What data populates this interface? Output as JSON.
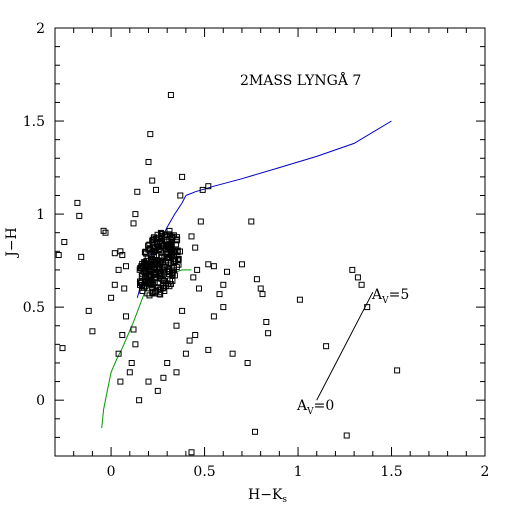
{
  "chart_data": {
    "type": "scatter",
    "title": "2MASS LYNGÅ 7",
    "xlabel": "H−K",
    "xlabel_sub": "s",
    "ylabel": "J−H",
    "xlim": [
      -0.3,
      2.0
    ],
    "ylim": [
      -0.3,
      2.0
    ],
    "x_ticks": [
      0,
      0.5,
      1,
      1.5,
      2
    ],
    "x_tick_labels": [
      "0",
      "0.5",
      "1",
      "1.5",
      "2"
    ],
    "y_ticks": [
      0,
      0.5,
      1,
      1.5,
      2
    ],
    "y_tick_labels": [
      "0",
      "0.5",
      "1",
      "1.5",
      "2"
    ],
    "grid": false,
    "annotations": [
      {
        "text": "A",
        "sub": "V",
        "rest": "=5",
        "x": 1.42,
        "y": 0.55
      },
      {
        "text": "A",
        "sub": "V",
        "rest": "=0",
        "x": 1.0,
        "y": -0.05
      }
    ],
    "lines": [
      {
        "color": "#0000cc",
        "x": [
          0.4,
          0.45,
          0.55,
          0.7,
          0.9,
          1.1,
          1.3,
          1.5
        ],
        "y": [
          1.1,
          1.12,
          1.15,
          1.19,
          1.25,
          1.31,
          1.38,
          1.5
        ]
      },
      {
        "color": "#0000cc",
        "x": [
          0.14,
          0.16,
          0.19,
          0.22,
          0.26,
          0.3,
          0.34,
          0.38,
          0.4
        ],
        "y": [
          0.55,
          0.62,
          0.7,
          0.78,
          0.85,
          0.93,
          1.0,
          1.06,
          1.1
        ]
      },
      {
        "color": "#009900",
        "x": [
          -0.05,
          -0.04,
          -0.02,
          0.0,
          0.03,
          0.06,
          0.09,
          0.12,
          0.15,
          0.18,
          0.22,
          0.27,
          0.32,
          0.38,
          0.43
        ],
        "y": [
          -0.15,
          -0.05,
          0.05,
          0.15,
          0.22,
          0.28,
          0.35,
          0.42,
          0.5,
          0.58,
          0.63,
          0.66,
          0.68,
          0.7,
          0.7
        ]
      },
      {
        "color": "#000000",
        "x": [
          1.1,
          1.4
        ],
        "y": [
          0.0,
          0.58
        ]
      }
    ],
    "points_cluster": {
      "x_center": 0.26,
      "y_center": 0.73,
      "count": 260
    },
    "points": [
      [
        -0.25,
        0.85
      ],
      [
        -0.28,
        0.78
      ],
      [
        -0.18,
        1.06
      ],
      [
        -0.17,
        0.99
      ],
      [
        -0.16,
        0.77
      ],
      [
        -0.26,
        0.28
      ],
      [
        -0.12,
        0.48
      ],
      [
        -0.1,
        0.37
      ],
      [
        -0.04,
        0.91
      ],
      [
        -0.03,
        0.9
      ],
      [
        0.0,
        0.55
      ],
      [
        0.02,
        0.62
      ],
      [
        0.05,
        0.8
      ],
      [
        0.06,
        0.78
      ],
      [
        0.07,
        0.6
      ],
      [
        0.08,
        0.45
      ],
      [
        0.06,
        0.35
      ],
      [
        0.04,
        0.25
      ],
      [
        0.11,
        0.2
      ],
      [
        0.13,
        0.3
      ],
      [
        0.12,
        0.38
      ],
      [
        0.14,
        1.12
      ],
      [
        0.13,
        1.0
      ],
      [
        0.12,
        0.95
      ],
      [
        0.21,
        1.43
      ],
      [
        0.2,
        1.28
      ],
      [
        0.32,
        1.64
      ],
      [
        0.22,
        1.18
      ],
      [
        0.24,
        1.13
      ],
      [
        0.38,
        1.2
      ],
      [
        0.37,
        1.1
      ],
      [
        0.49,
        1.13
      ],
      [
        0.52,
        1.15
      ],
      [
        0.48,
        0.96
      ],
      [
        0.52,
        0.73
      ],
      [
        0.55,
        0.72
      ],
      [
        0.58,
        0.57
      ],
      [
        0.6,
        0.5
      ],
      [
        0.55,
        0.45
      ],
      [
        0.52,
        0.27
      ],
      [
        0.45,
        0.35
      ],
      [
        0.65,
        0.25
      ],
      [
        0.7,
        0.73
      ],
      [
        0.73,
        0.2
      ],
      [
        0.75,
        0.96
      ],
      [
        0.78,
        0.65
      ],
      [
        0.8,
        0.6
      ],
      [
        0.81,
        0.57
      ],
      [
        0.83,
        0.42
      ],
      [
        0.84,
        0.36
      ],
      [
        0.77,
        -0.17
      ],
      [
        1.01,
        0.54
      ],
      [
        1.15,
        0.29
      ],
      [
        1.29,
        0.7
      ],
      [
        1.32,
        0.66
      ],
      [
        1.34,
        0.62
      ],
      [
        1.26,
        -0.19
      ],
      [
        1.37,
        0.5
      ],
      [
        1.53,
        0.16
      ],
      [
        0.43,
        -0.28
      ],
      [
        0.05,
        0.1
      ],
      [
        0.15,
        0.0
      ],
      [
        0.25,
        0.05
      ],
      [
        0.28,
        0.12
      ],
      [
        0.35,
        0.15
      ],
      [
        0.4,
        0.25
      ],
      [
        0.42,
        0.32
      ],
      [
        0.3,
        0.2
      ],
      [
        0.2,
        0.1
      ],
      [
        0.1,
        0.15
      ],
      [
        0.6,
        0.62
      ],
      [
        0.62,
        0.69
      ],
      [
        0.46,
        0.7
      ],
      [
        0.44,
        0.66
      ],
      [
        0.47,
        0.6
      ],
      [
        0.43,
        0.88
      ],
      [
        0.45,
        0.82
      ],
      [
        0.08,
        0.72
      ],
      [
        0.04,
        0.7
      ],
      [
        0.02,
        0.79
      ],
      [
        0.35,
        0.4
      ],
      [
        0.38,
        0.48
      ]
    ]
  }
}
